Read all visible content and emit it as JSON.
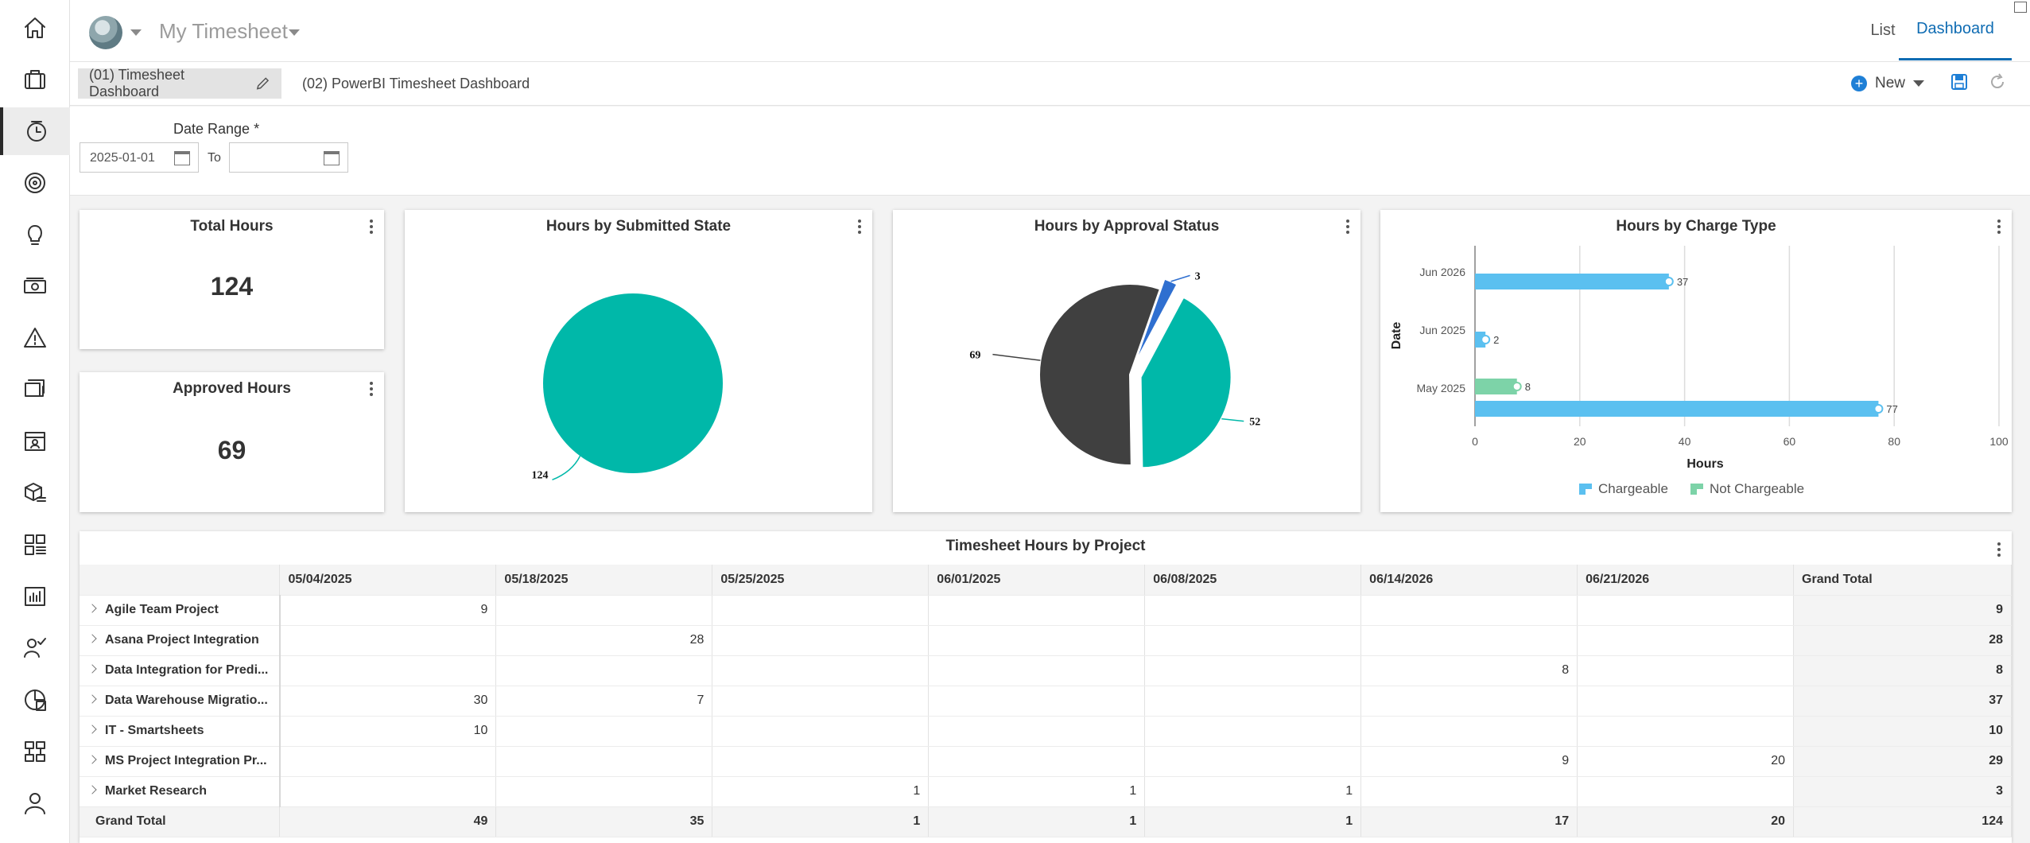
{
  "header": {
    "app_title": "My Timesheet",
    "view_tabs": [
      "List",
      "Dashboard"
    ],
    "active_view": "Dashboard"
  },
  "nav": {
    "icons": [
      "home-icon",
      "briefcase-icon",
      "timesheet-icon",
      "target-icon",
      "lightbulb-icon",
      "money-icon",
      "warning-icon",
      "documents-icon",
      "resource-card-icon",
      "package-list-icon",
      "grid-list-icon",
      "report-chart-icon",
      "people-check-icon",
      "portfolio-report-icon",
      "hierarchy-icon",
      "user-icon"
    ],
    "active_index": 2
  },
  "dashboards": {
    "tabs": [
      "(01) Timesheet Dashboard",
      "(02) PowerBI Timesheet Dashboard"
    ],
    "active_index": 0,
    "new_label": "New"
  },
  "filters": {
    "date_range_label": "Date Range *",
    "from_value": "2025-01-01",
    "to_label": "To",
    "to_value": ""
  },
  "kpis": {
    "total_hours": {
      "title": "Total Hours",
      "value": "124"
    },
    "approved_hours": {
      "title": "Approved Hours",
      "value": "69"
    }
  },
  "chart_data": [
    {
      "type": "pie",
      "title": "Hours by Submitted State",
      "slices": [
        {
          "value": 124,
          "label": "124",
          "color": "#00b8a9"
        }
      ]
    },
    {
      "type": "pie",
      "title": "Hours by Approval Status",
      "slices": [
        {
          "value": 69,
          "label": "69",
          "color": "#404040"
        },
        {
          "value": 3,
          "label": "3",
          "color": "#2f6fd0"
        },
        {
          "value": 52,
          "label": "52",
          "color": "#00b8a9"
        }
      ]
    },
    {
      "type": "bar",
      "orientation": "horizontal",
      "title": "Hours by Charge Type",
      "xlabel": "Hours",
      "ylabel": "Date",
      "categories": [
        "Jun 2026",
        "Jun 2025",
        "May 2025"
      ],
      "series": [
        {
          "name": "Chargeable",
          "color": "#5bc0f0",
          "values": [
            37,
            2,
            77
          ]
        },
        {
          "name": "Not Chargeable",
          "color": "#7dd3a8",
          "values": [
            null,
            null,
            8
          ]
        }
      ],
      "xlim": [
        0,
        100
      ],
      "xticks": [
        "0",
        "20",
        "40",
        "60",
        "80",
        "100"
      ],
      "legend": "bottom",
      "grid": true
    }
  ],
  "table": {
    "title": "Timesheet Hours by Project",
    "columns": [
      "05/04/2025",
      "05/18/2025",
      "05/25/2025",
      "06/01/2025",
      "06/08/2025",
      "06/14/2026",
      "06/21/2026",
      "Grand Total"
    ],
    "rows": [
      {
        "name": "Agile Team Project",
        "cells": [
          "9",
          "",
          "",
          "",
          "",
          "",
          "",
          "9"
        ]
      },
      {
        "name": "Asana Project Integration",
        "cells": [
          "",
          "28",
          "",
          "",
          "",
          "",
          "",
          "28"
        ]
      },
      {
        "name": "Data Integration for Predi...",
        "cells": [
          "",
          "",
          "",
          "",
          "",
          "8",
          "",
          "8"
        ]
      },
      {
        "name": "Data Warehouse Migratio...",
        "cells": [
          "30",
          "7",
          "",
          "",
          "",
          "",
          "",
          "37"
        ]
      },
      {
        "name": "IT - Smartsheets",
        "cells": [
          "10",
          "",
          "",
          "",
          "",
          "",
          "",
          "10"
        ]
      },
      {
        "name": "MS Project Integration Pr...",
        "cells": [
          "",
          "",
          "",
          "",
          "",
          "9",
          "20",
          "29"
        ]
      },
      {
        "name": "Market Research",
        "cells": [
          "",
          "",
          "1",
          "1",
          "1",
          "",
          "",
          "3"
        ]
      }
    ],
    "total_row": {
      "name": "Grand Total",
      "cells": [
        "49",
        "35",
        "1",
        "1",
        "1",
        "17",
        "20",
        "124"
      ]
    }
  }
}
